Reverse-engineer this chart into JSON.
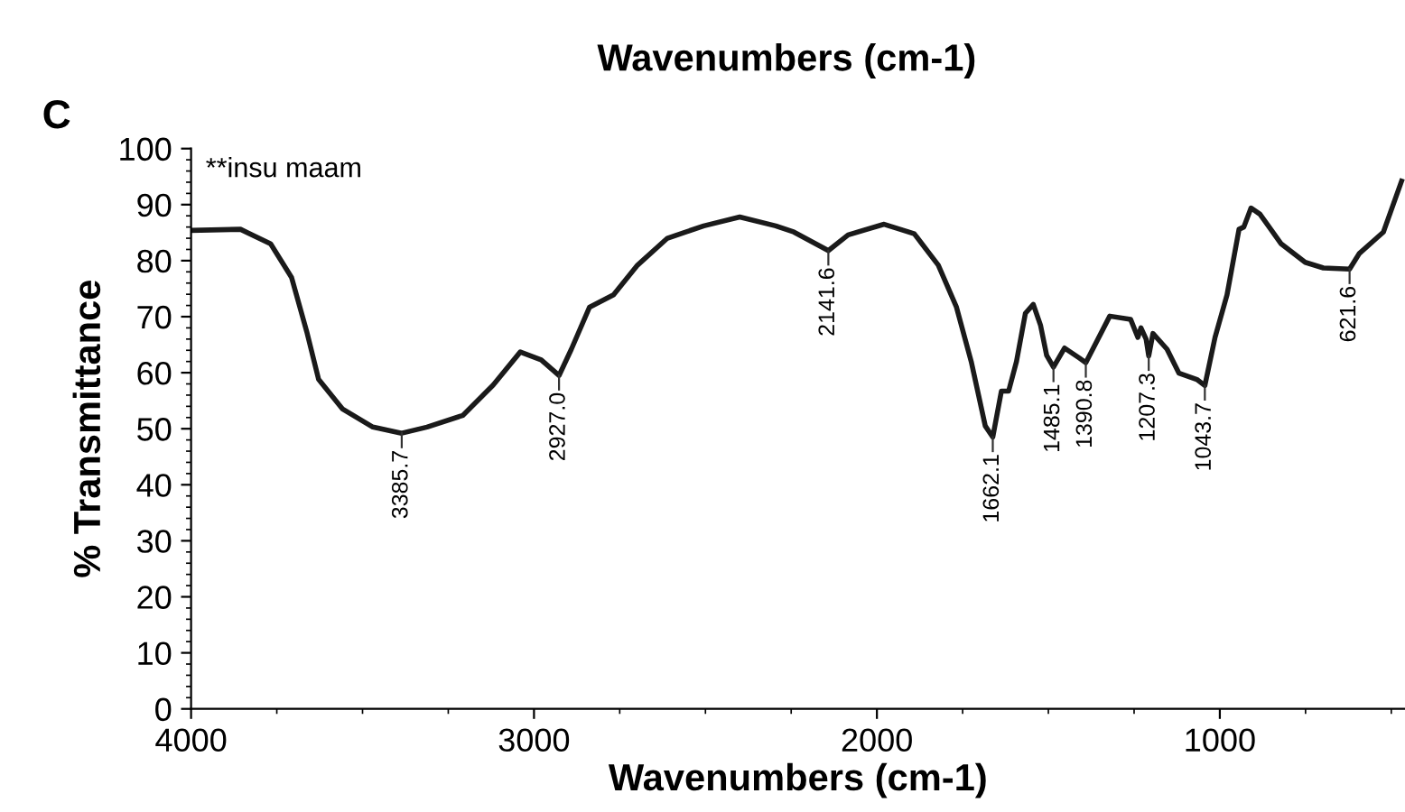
{
  "chart_data": {
    "type": "line",
    "title": "Wavenumbers (cm-1)",
    "xlabel": "Wavenumbers (cm-1)",
    "ylabel": "% Transmittance",
    "xlim": [
      4000,
      460
    ],
    "xticks": [
      4000,
      3000,
      2000,
      1000
    ],
    "ylim": [
      0,
      100
    ],
    "yticks": [
      0,
      10,
      20,
      30,
      40,
      50,
      60,
      70,
      80,
      90,
      100
    ],
    "grid": false,
    "legend": false,
    "marker": "none",
    "line_style": "solid",
    "annotations": [
      "C",
      "**insu maam",
      {
        "text": "3385.7",
        "x": 3385.7,
        "y": 49.2
      },
      {
        "text": "2927.0",
        "x": 2927.0,
        "y": 59.5
      },
      {
        "text": "2141.6",
        "x": 2141.6,
        "y": 81.8
      },
      {
        "text": "1662.1",
        "x": 1662.1,
        "y": 48.5
      },
      {
        "text": "1485.1",
        "x": 1485.1,
        "y": 61
      },
      {
        "text": "1390.8",
        "x": 1390.8,
        "y": 61.8
      },
      {
        "text": "1207.3",
        "x": 1207.3,
        "y": 63
      },
      {
        "text": "1043.7",
        "x": 1043.7,
        "y": 57.7
      },
      {
        "text": "621.6",
        "x": 621.6,
        "y": 78.5
      }
    ],
    "series": [
      {
        "color": "#1a1a1a",
        "x": [
          4000,
          3856,
          3768,
          3707,
          3663,
          3628,
          3558,
          3470,
          3385.7,
          3312,
          3207,
          3119,
          3040,
          2979,
          2927.0,
          2891,
          2838,
          2768,
          2698,
          2611,
          2505,
          2400,
          2295,
          2242,
          2141.6,
          2084,
          1979,
          1891,
          1821,
          1768,
          1725,
          1684,
          1662.1,
          1637,
          1616,
          1593,
          1567,
          1544,
          1523,
          1505,
          1485.1,
          1453,
          1409,
          1390.8,
          1321,
          1260,
          1239,
          1230,
          1215,
          1207.3,
          1195,
          1154,
          1119,
          1067,
          1043.7,
          1014,
          979,
          944,
          930,
          909,
          883,
          821,
          751,
          698,
          621.6,
          593,
          523,
          470
        ],
        "values": [
          85.4,
          85.6,
          83,
          77,
          67.4,
          58.8,
          53.5,
          50.3,
          49.2,
          50.3,
          52.4,
          57.8,
          63.7,
          62.3,
          59.5,
          64.2,
          71.7,
          73.9,
          79.2,
          84,
          86.2,
          87.8,
          86.2,
          85.1,
          81.8,
          84.6,
          86.5,
          84.8,
          79.2,
          71.7,
          62,
          50.5,
          48.5,
          56.7,
          56.7,
          62,
          70.6,
          72.2,
          68.5,
          63.1,
          61,
          64.4,
          62.6,
          61.8,
          70.1,
          69.5,
          66.3,
          68,
          66,
          63,
          67,
          64.2,
          59.9,
          58.8,
          57.7,
          66.3,
          73.9,
          85.6,
          86,
          89.4,
          88.3,
          83,
          79.7,
          78.7,
          78.5,
          81.3,
          85.1,
          94.2
        ]
      }
    ]
  }
}
